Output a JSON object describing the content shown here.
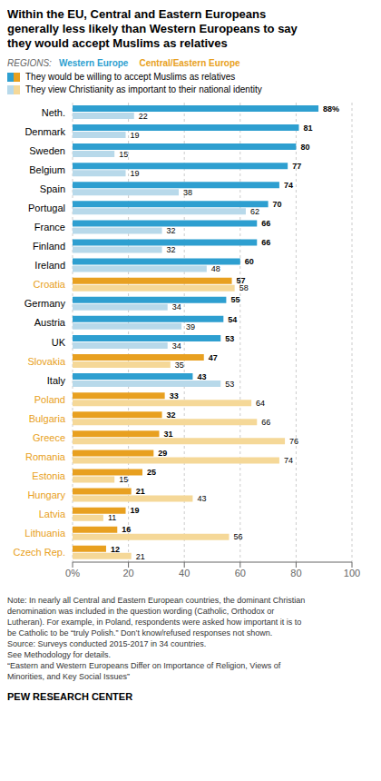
{
  "chart_data": {
    "type": "bar",
    "orientation": "horizontal",
    "title": "Within the EU, Central and Eastern Europeans\ngenerally less likely than Western Europeans to say\nthey would accept Muslims as relatives",
    "categories": [
      "Neth.",
      "Denmark",
      "Sweden",
      "Belgium",
      "Spain",
      "Portugal",
      "France",
      "Finland",
      "Ireland",
      "Croatia",
      "Germany",
      "Austria",
      "UK",
      "Slovakia",
      "Italy",
      "Poland",
      "Bulgaria",
      "Greece",
      "Romania",
      "Estonia",
      "Hungary",
      "Latvia",
      "Lithuania",
      "Czech Rep."
    ],
    "series": [
      {
        "name": "They would be willing to accept Muslims as relatives",
        "values": [
          88,
          81,
          80,
          77,
          74,
          70,
          66,
          66,
          60,
          57,
          55,
          54,
          53,
          47,
          43,
          33,
          32,
          31,
          29,
          25,
          21,
          19,
          16,
          12
        ],
        "value_labels": [
          "88%",
          "81",
          "80",
          "77",
          "74",
          "70",
          "66",
          "66",
          "60",
          "57",
          "55",
          "54",
          "53",
          "47",
          "43",
          "33",
          "32",
          "31",
          "29",
          "25",
          "21",
          "19",
          "16",
          "12"
        ],
        "colors": [
          "#2E9FD0",
          "#2E9FD0",
          "#2E9FD0",
          "#2E9FD0",
          "#2E9FD0",
          "#2E9FD0",
          "#2E9FD0",
          "#2E9FD0",
          "#2E9FD0",
          "#E8A020",
          "#2E9FD0",
          "#2E9FD0",
          "#2E9FD0",
          "#E8A020",
          "#2E9FD0",
          "#E8A020",
          "#E8A020",
          "#E8A020",
          "#E8A020",
          "#E8A020",
          "#E8A020",
          "#E8A020",
          "#E8A020",
          "#E8A020"
        ]
      },
      {
        "name": "They view Christianity as important to their national identity",
        "values": [
          22,
          19,
          15,
          19,
          38,
          62,
          32,
          32,
          48,
          58,
          34,
          39,
          34,
          35,
          53,
          64,
          66,
          76,
          74,
          15,
          43,
          11,
          56,
          21
        ],
        "colors": [
          "#B8D9EA",
          "#B8D9EA",
          "#B8D9EA",
          "#B8D9EA",
          "#B8D9EA",
          "#B8D9EA",
          "#B8D9EA",
          "#B8D9EA",
          "#B8D9EA",
          "#F5D898",
          "#B8D9EA",
          "#B8D9EA",
          "#B8D9EA",
          "#F5D898",
          "#B8D9EA",
          "#F5D898",
          "#F5D898",
          "#F5D898",
          "#F5D898",
          "#F5D898",
          "#F5D898",
          "#F5D898",
          "#F5D898",
          "#F5D898"
        ]
      }
    ],
    "xlim": [
      0,
      100
    ],
    "xticks": [
      {
        "value": 0,
        "label": "0%"
      },
      20,
      40,
      60,
      80,
      100
    ],
    "grid": true,
    "data_labels": true,
    "annotations": [
      {
        "text": "REGIONS:"
      },
      {
        "text": "Western Europe",
        "color": "#2E9FD0"
      },
      {
        "text": "Central/Eastern Europe",
        "color": "#E8A020"
      },
      {
        "text": "Note: In nearly all Central and Eastern European countries, the dominant Christian"
      },
      {
        "text": "denomination was included in the question wording (Catholic, Orthodox or"
      },
      {
        "text": "Lutheran). For example, in Poland, respondents were asked how important it is to"
      },
      {
        "text": "be Catholic to be “truly Polish.” Don’t know/refused responses not shown."
      },
      {
        "text": "Source: Surveys conducted 2015-2017 in 34 countries."
      },
      {
        "text": "See Methodology for details."
      },
      {
        "text": "“Eastern and Western Europeans Differ on Importance of Religion, Views of"
      },
      {
        "text": "Minorities, and Key Social Issues”"
      },
      {
        "text": "PEW RESEARCH CENTER"
      }
    ]
  }
}
